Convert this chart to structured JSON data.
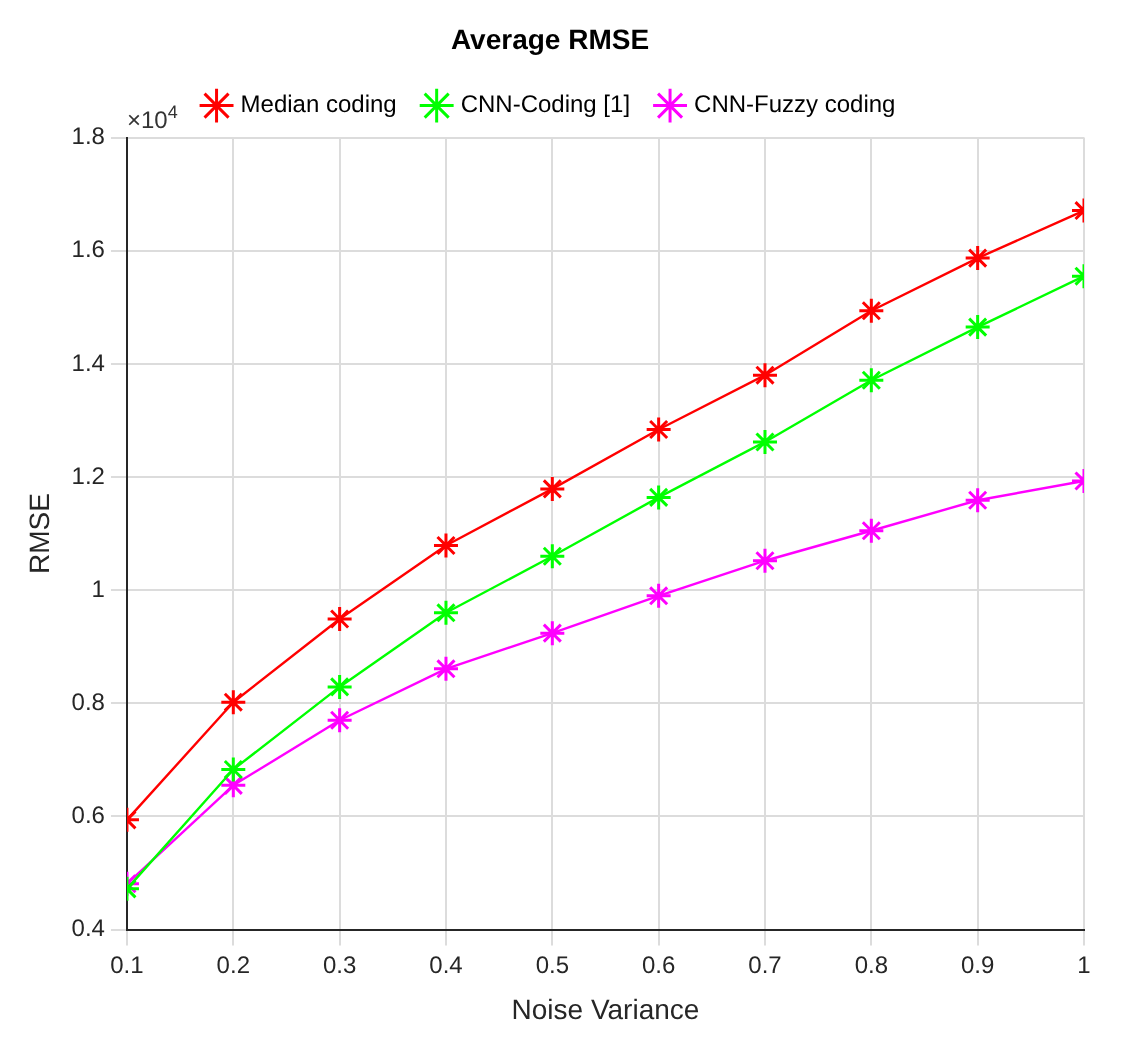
{
  "chart_data": {
    "type": "line",
    "title": "Average RMSE",
    "xlabel": "Noise Variance",
    "ylabel": "RMSE",
    "annotations": [
      "×10$^{4}$"
    ],
    "x": [
      0.1,
      0.2,
      0.3,
      0.4,
      0.5,
      0.6,
      0.7,
      0.8,
      0.9,
      1.0
    ],
    "series": [
      {
        "name": "Median coding",
        "color": "#ff0000",
        "values": [
          0.594,
          0.802,
          0.949,
          1.079,
          1.179,
          1.284,
          1.38,
          1.494,
          1.587,
          1.671
        ]
      },
      {
        "name": "CNN-Coding [1]",
        "color": "#00ff00",
        "values": [
          0.472,
          0.683,
          0.829,
          0.96,
          1.06,
          1.164,
          1.262,
          1.371,
          1.465,
          1.555
        ]
      },
      {
        "name": "CNN-Fuzzy coding",
        "color": "#ff00ff",
        "values": [
          0.481,
          0.655,
          0.77,
          0.861,
          0.924,
          0.99,
          1.052,
          1.105,
          1.159,
          1.193
        ]
      }
    ],
    "xlim": [
      0.1,
      1.0
    ],
    "xticks": [
      0.1,
      0.2,
      0.3,
      0.4,
      0.5,
      0.6,
      0.7,
      0.8,
      0.9,
      1
    ],
    "ylim": [
      0.4,
      1.8
    ],
    "yticks": [
      0.4,
      0.6,
      0.8,
      1,
      1.2,
      1.4,
      1.6,
      1.8
    ],
    "grid": true,
    "legend": "top",
    "marker": "cross",
    "line_style": "solid"
  }
}
